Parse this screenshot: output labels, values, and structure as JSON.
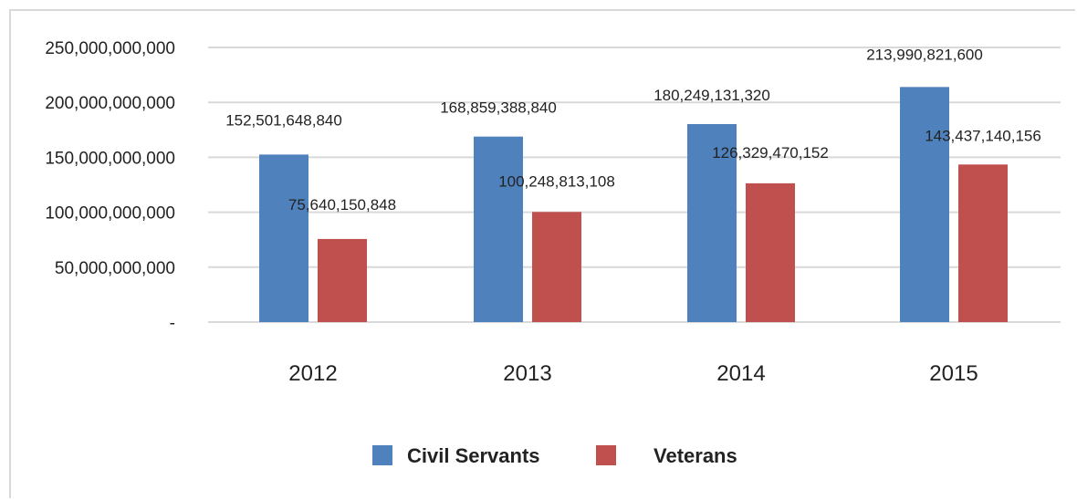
{
  "chart_data": {
    "type": "bar",
    "categories": [
      "2012",
      "2013",
      "2014",
      "2015"
    ],
    "series": [
      {
        "name": "Civil Servants",
        "color": "#4f81bd",
        "values": [
          152501648840,
          168859388840,
          180249131320,
          213990821600
        ],
        "labels": [
          "152,501,648,840",
          "168,859,388,840",
          "180,249,131,320",
          "213,990,821,600"
        ]
      },
      {
        "name": "Veterans",
        "color": "#c0504d",
        "values": [
          75640150848,
          100248813108,
          126329470152,
          143437140156
        ],
        "labels": [
          "75,640,150,848",
          "100,248,813,108",
          "126,329,470,152",
          "143,437,140,156"
        ]
      }
    ],
    "ylim": [
      0,
      250000000000
    ],
    "yticks": [
      {
        "value": 0,
        "label": "-"
      },
      {
        "value": 50000000000,
        "label": "50,000,000,000"
      },
      {
        "value": 100000000000,
        "label": "100,000,000,000"
      },
      {
        "value": 150000000000,
        "label": "150,000,000,000"
      },
      {
        "value": 200000000000,
        "label": "200,000,000,000"
      },
      {
        "value": 250000000000,
        "label": "250,000,000,000"
      }
    ],
    "grid": true,
    "legend_position": "bottom",
    "title": "",
    "xlabel": "",
    "ylabel": ""
  }
}
